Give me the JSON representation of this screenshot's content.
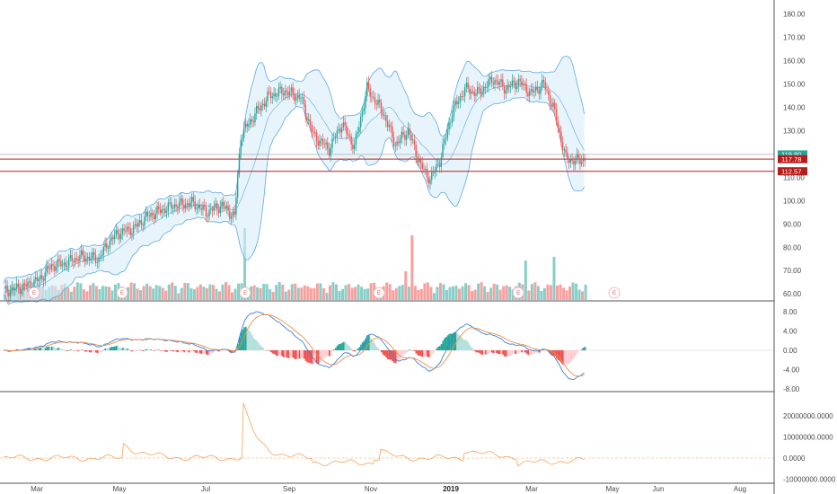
{
  "colors": {
    "up": "#26a69a",
    "down": "#ef5350",
    "band_line": "#5fa8e0",
    "band_fill": "#d8ecfa",
    "macd_line": "#3a82d8",
    "signal_line": "#f08d4a",
    "hist_up_strong": "#26a69a",
    "hist_up_weak": "#b2dfdb",
    "hist_down_strong": "#ef5350",
    "hist_down_weak": "#ffcdd2",
    "osc_line": "#f5a25b",
    "tag_last": "#26a69a",
    "tag_level": "#b71c1c",
    "level_line": "#b71c1c",
    "pane_border": "#50535e"
  },
  "chart_data": {
    "type": "candlestick",
    "price_axis": {
      "ticks": [
        "180.00",
        "170.00",
        "160.00",
        "150.00",
        "140.00",
        "130.00",
        "120.00",
        "110.00",
        "100.00",
        "90.00",
        "80.00",
        "70.00",
        "60.00"
      ],
      "ylim": [
        57,
        186
      ]
    },
    "date_axis": {
      "labels": [
        "Mar",
        "May",
        "Jul",
        "Sep",
        "Nov",
        "2019",
        "Mar",
        "May",
        "Jun",
        "Aug"
      ]
    },
    "price_tags": [
      {
        "label": "119.80",
        "value": 119.8,
        "kind": "last"
      },
      {
        "label": "117.78",
        "value": 117.78,
        "kind": "level"
      },
      {
        "label": "112.57",
        "value": 112.57,
        "kind": "level"
      }
    ],
    "horizontal_levels": [
      117.78,
      112.57
    ],
    "earnings_markers": [
      "E",
      "E",
      "E",
      "E",
      "E",
      "E"
    ],
    "price_keyframes": [
      [
        0,
        61
      ],
      [
        12,
        63
      ],
      [
        22,
        66
      ],
      [
        30,
        72
      ],
      [
        38,
        73
      ],
      [
        48,
        76
      ],
      [
        60,
        75
      ],
      [
        66,
        82
      ],
      [
        72,
        86
      ],
      [
        82,
        88
      ],
      [
        90,
        93
      ],
      [
        100,
        96
      ],
      [
        108,
        98
      ],
      [
        120,
        99
      ],
      [
        128,
        95
      ],
      [
        138,
        98
      ],
      [
        146,
        93
      ],
      [
        150,
        128
      ],
      [
        160,
        138
      ],
      [
        168,
        145
      ],
      [
        178,
        147
      ],
      [
        188,
        144
      ],
      [
        196,
        128
      ],
      [
        206,
        122
      ],
      [
        214,
        133
      ],
      [
        222,
        123
      ],
      [
        230,
        148
      ],
      [
        240,
        138
      ],
      [
        248,
        124
      ],
      [
        256,
        130
      ],
      [
        264,
        115
      ],
      [
        270,
        109
      ],
      [
        276,
        117
      ],
      [
        284,
        138
      ],
      [
        292,
        148
      ],
      [
        300,
        146
      ],
      [
        310,
        152
      ],
      [
        318,
        148
      ],
      [
        326,
        151
      ],
      [
        334,
        146
      ],
      [
        342,
        150
      ],
      [
        348,
        140
      ],
      [
        356,
        118
      ],
      [
        362,
        117
      ],
      [
        368,
        118
      ]
    ],
    "macd": {
      "yticks": [
        "8.00",
        "4.00",
        "0.00",
        "-4.00",
        "-8.00"
      ],
      "ylim": [
        -8.5,
        9.5
      ]
    },
    "oscillator": {
      "yticks": [
        "20000000.0000",
        "10000000.0000",
        "0.0000",
        "-10000000.0000"
      ],
      "ylim": [
        -11000000,
        28000000
      ]
    }
  }
}
